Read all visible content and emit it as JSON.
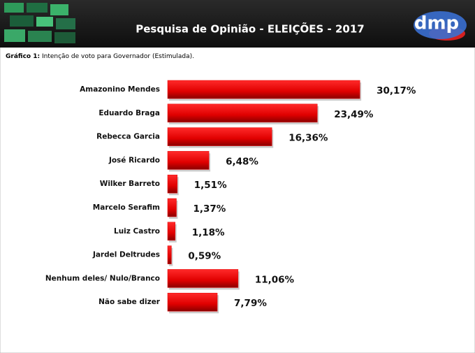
{
  "chart_data": {
    "type": "bar",
    "orientation": "horizontal",
    "title": "Pesquisa de Opinião - ELEIÇÕES - 2017",
    "logo": "dmp",
    "caption_label": "Gráfico 1:",
    "caption": "Intenção de voto para Governador (Estimulada).",
    "color": "#e50000",
    "categories": [
      "Amazonino Mendes",
      "Eduardo Braga",
      "Rebecca Garcia",
      "José Ricardo",
      "Wilker Barreto",
      "Marcelo Serafim",
      "Luiz Castro",
      "Jardel Deltrudes",
      "Nenhum deles/ Nulo/Branco",
      "Não sabe dizer"
    ],
    "values": [
      30.17,
      23.49,
      16.36,
      6.48,
      1.51,
      1.37,
      1.18,
      0.59,
      11.06,
      7.79
    ],
    "value_labels": [
      "30,17%",
      "23,49%",
      "16,36%",
      "6,48%",
      "1,51%",
      "1,37%",
      "1,18%",
      "0,59%",
      "11,06%",
      "7,79%"
    ]
  }
}
